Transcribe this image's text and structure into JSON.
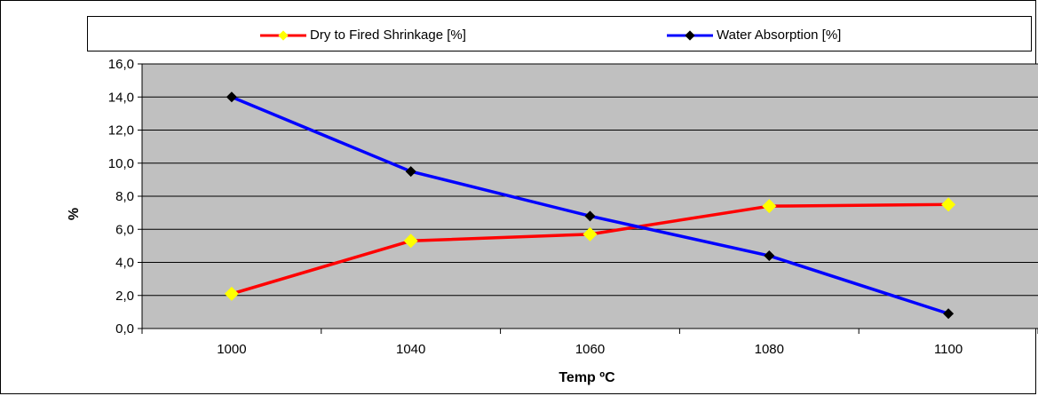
{
  "chart_data": {
    "type": "line",
    "categories": [
      "1000",
      "1040",
      "1060",
      "1080",
      "1100"
    ],
    "series": [
      {
        "name": "Dry to Fired Shrinkage [%]",
        "values": [
          2.1,
          5.3,
          5.7,
          7.4,
          7.5
        ],
        "color": "#ff0000",
        "marker_color": "#ffff00"
      },
      {
        "name": "Water Absorption [%]",
        "values": [
          14.0,
          9.5,
          6.8,
          4.4,
          0.9
        ],
        "color": "#0000ff",
        "marker_color": "#000000"
      }
    ],
    "xlabel": "Temp ºC",
    "ylabel": "%",
    "ylim": [
      0,
      16
    ],
    "yticks": [
      "0,0",
      "2,0",
      "4,0",
      "6,0",
      "8,0",
      "10,0",
      "12,0",
      "14,0",
      "16,0"
    ],
    "grid": true,
    "plot_background": "#c0c0c0",
    "legend": "top"
  }
}
